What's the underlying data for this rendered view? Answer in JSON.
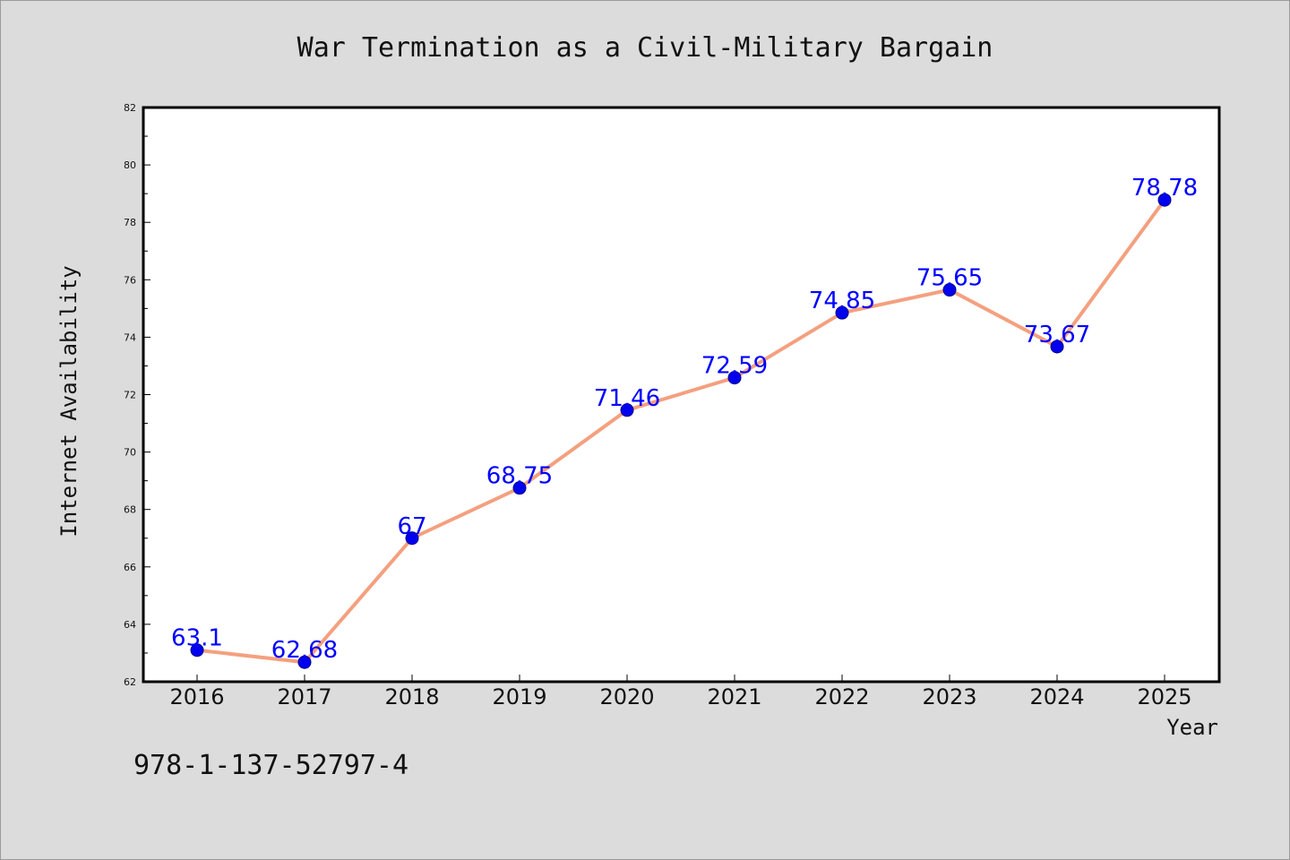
{
  "chart_data": {
    "type": "line",
    "title": "War Termination as a Civil-Military Bargain",
    "xlabel": "Year",
    "ylabel": "Internet Availability",
    "categories": [
      "2016",
      "2017",
      "2018",
      "2019",
      "2020",
      "2021",
      "2022",
      "2023",
      "2024",
      "2025"
    ],
    "series": [
      {
        "values": [
          63.1,
          62.68,
          67,
          68.75,
          71.46,
          72.59,
          74.85,
          75.65,
          73.67,
          78.78
        ],
        "labels": [
          "63.1",
          "62.68",
          "67",
          "68.75",
          "71.46",
          "72.59",
          "74.85",
          "75.65",
          "73.67",
          "78.78"
        ],
        "line_color": "#f4a07f",
        "marker_color": "#0000ee"
      }
    ],
    "ylim": [
      62,
      82
    ],
    "yticks": [
      "62",
      "64",
      "66",
      "68",
      "70",
      "72",
      "74",
      "76",
      "78",
      "80",
      "82"
    ],
    "grid": false,
    "legend": "none"
  },
  "footer": {
    "isbn": "978-1-137-52797-4"
  },
  "colors": {
    "background": "#dcdcdc",
    "plot_background": "#ffffff",
    "line": "#f4a07f",
    "marker": "#0000ee",
    "data_label": "#0000ff"
  }
}
